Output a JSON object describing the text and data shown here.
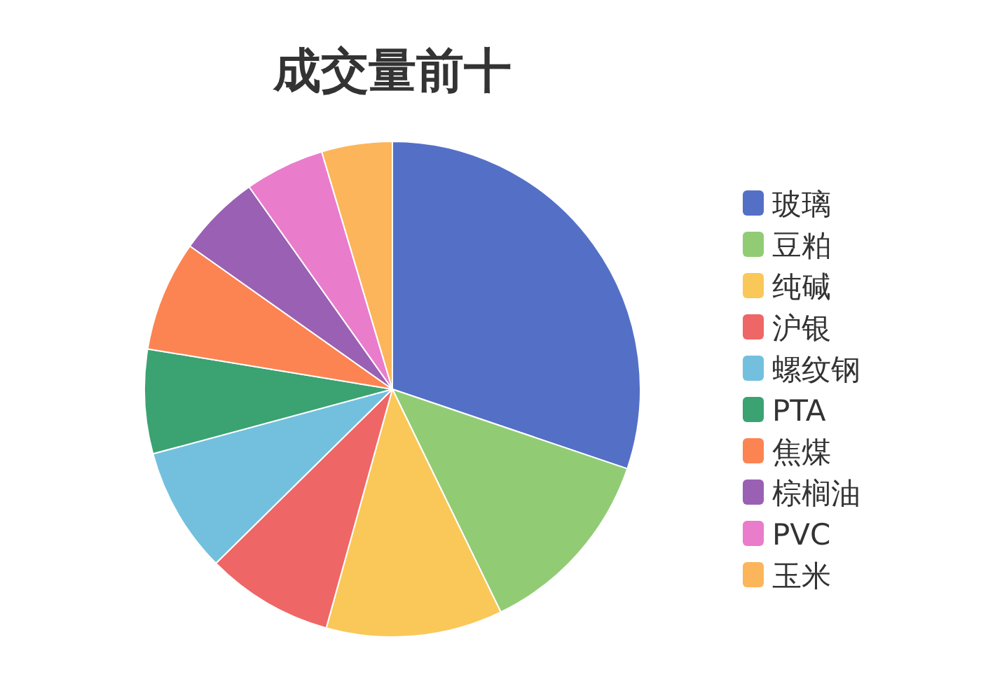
{
  "chart_data": {
    "type": "pie",
    "title": "成交量前十",
    "categories": [
      "玻璃",
      "豆粕",
      "纯碱",
      "沪银",
      "螺纹钢",
      "PTA",
      "焦煤",
      "棕榈油",
      "PVC",
      "玉米"
    ],
    "values": [
      30.2,
      12.6,
      11.5,
      8.3,
      8.2,
      6.8,
      7.2,
      5.4,
      5.2,
      4.6
    ],
    "colors": [
      "#5470c6",
      "#91cc75",
      "#fac858",
      "#ee6666",
      "#73c0de",
      "#3ba272",
      "#fc8452",
      "#9a60b4",
      "#ea7ccc",
      "#fcb55a"
    ],
    "legend": "right"
  }
}
